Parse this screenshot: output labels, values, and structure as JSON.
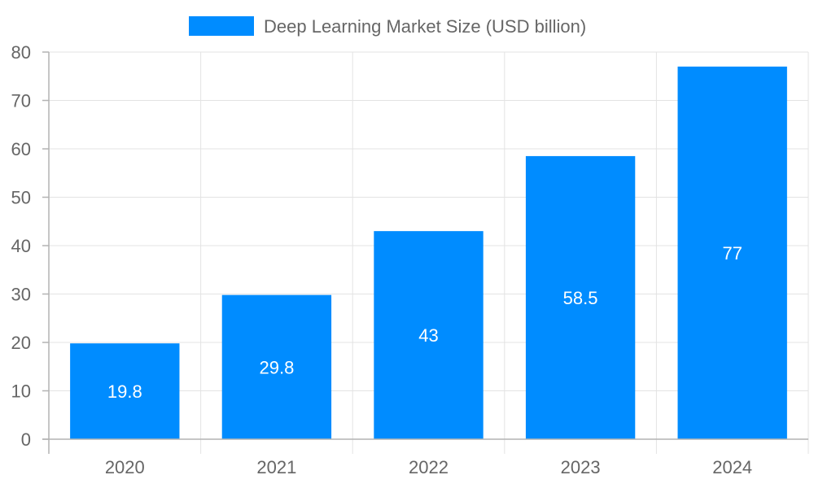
{
  "chart_data": {
    "type": "bar",
    "categories": [
      "2020",
      "2021",
      "2022",
      "2023",
      "2024"
    ],
    "series": [
      {
        "name": "Deep Learning Market Size (USD billion)",
        "values": [
          19.8,
          29.8,
          43,
          58.5,
          77
        ]
      }
    ],
    "data_labels": [
      "19.8",
      "29.8",
      "43",
      "58.5",
      "77"
    ],
    "y_ticks": [
      0,
      10,
      20,
      30,
      40,
      50,
      60,
      70,
      80
    ],
    "ylim": [
      0,
      80
    ],
    "title": "",
    "xlabel": "",
    "ylabel": "",
    "grid": true,
    "legend_position": "top-center",
    "colors": {
      "bar": "#008cff",
      "grid": "#e3e3e3",
      "axis": "#b3b3b3",
      "text": "#666666",
      "data_label": "#ffffff"
    }
  }
}
